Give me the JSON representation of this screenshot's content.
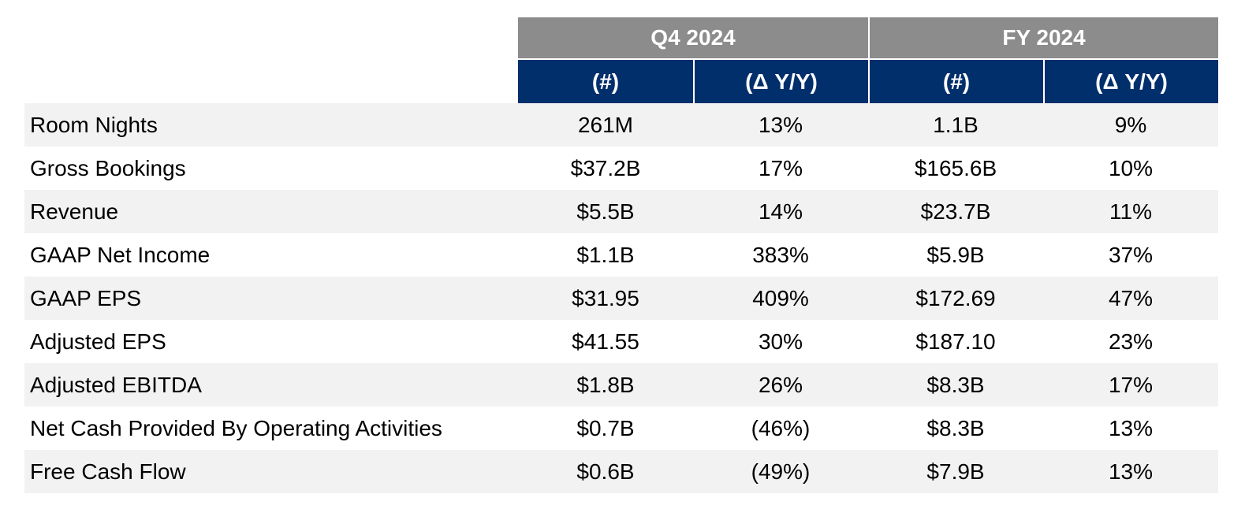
{
  "colors": {
    "period_header_bg": "#8c8c8c",
    "sub_header_bg": "#002f6c",
    "band_row_bg": "#f2f2f2",
    "header_text": "#ffffff"
  },
  "chart_data": {
    "type": "table",
    "column_groups": [
      "Q4 2024",
      "FY 2024"
    ],
    "sub_columns": [
      "(#)",
      "(Δ Y/Y)",
      "(#)",
      "(Δ Y/Y)"
    ],
    "rows": [
      {
        "label": "Room Nights",
        "q4_value": "261M",
        "q4_yoy": "13%",
        "fy_value": "1.1B",
        "fy_yoy": "9%"
      },
      {
        "label": "Gross Bookings",
        "q4_value": "$37.2B",
        "q4_yoy": "17%",
        "fy_value": "$165.6B",
        "fy_yoy": "10%"
      },
      {
        "label": "Revenue",
        "q4_value": "$5.5B",
        "q4_yoy": "14%",
        "fy_value": "$23.7B",
        "fy_yoy": "11%"
      },
      {
        "label": "GAAP Net Income",
        "q4_value": "$1.1B",
        "q4_yoy": "383%",
        "fy_value": "$5.9B",
        "fy_yoy": "37%"
      },
      {
        "label": "GAAP EPS",
        "q4_value": "$31.95",
        "q4_yoy": "409%",
        "fy_value": "$172.69",
        "fy_yoy": "47%"
      },
      {
        "label": "Adjusted EPS",
        "q4_value": "$41.55",
        "q4_yoy": "30%",
        "fy_value": "$187.10",
        "fy_yoy": "23%"
      },
      {
        "label": "Adjusted EBITDA",
        "q4_value": "$1.8B",
        "q4_yoy": "26%",
        "fy_value": "$8.3B",
        "fy_yoy": "17%"
      },
      {
        "label": "Net Cash Provided By Operating Activities",
        "q4_value": "$0.7B",
        "q4_yoy": "(46%)",
        "fy_value": "$8.3B",
        "fy_yoy": "13%"
      },
      {
        "label": "Free Cash Flow",
        "q4_value": "$0.6B",
        "q4_yoy": "(49%)",
        "fy_value": "$7.9B",
        "fy_yoy": "13%"
      }
    ]
  }
}
